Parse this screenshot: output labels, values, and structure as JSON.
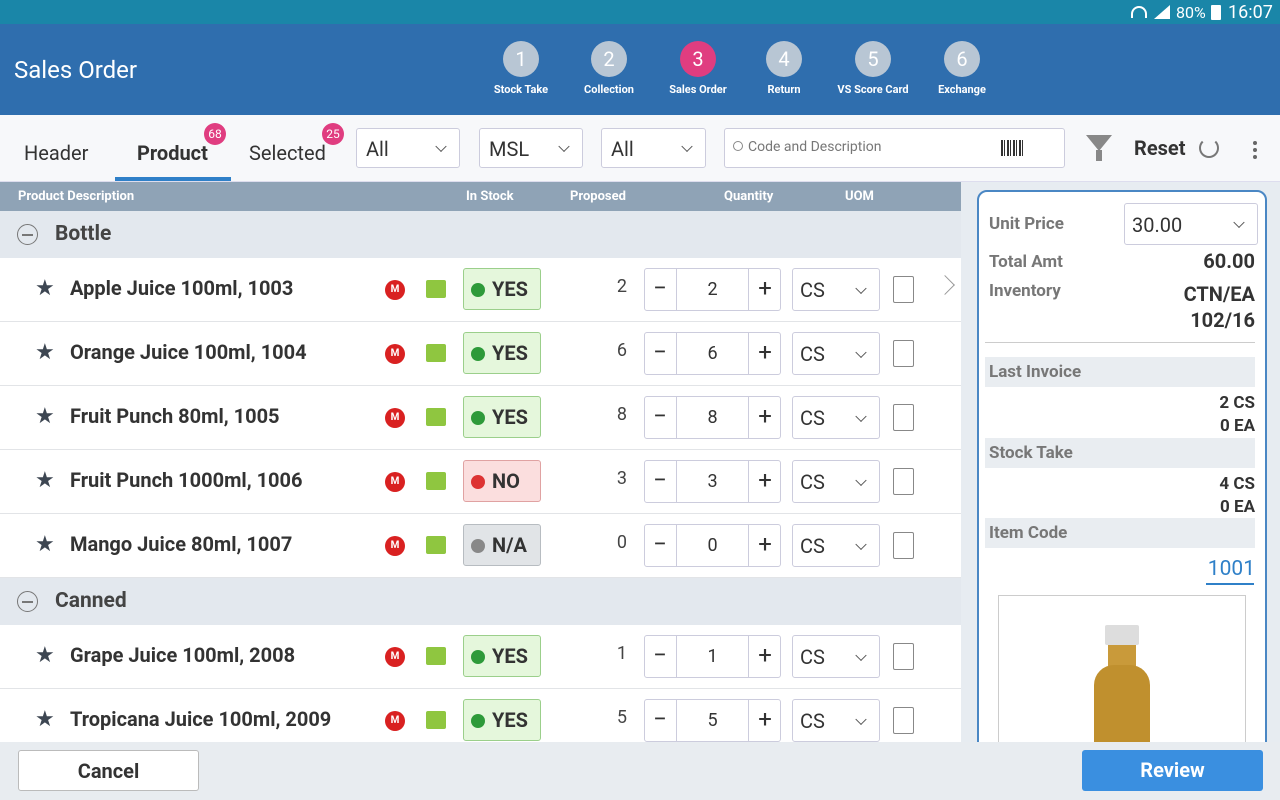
{
  "status_bar": {
    "battery": "80%",
    "time": "16:07"
  },
  "header": {
    "title": "Sales Order",
    "steps": [
      {
        "number": "1",
        "label": "Stock Take",
        "active": false
      },
      {
        "number": "2",
        "label": "Collection",
        "active": false
      },
      {
        "number": "3",
        "label": "Sales Order",
        "active": true
      },
      {
        "number": "4",
        "label": "Return",
        "active": false
      },
      {
        "number": "5",
        "label": "VS Score Card",
        "active": false
      },
      {
        "number": "6",
        "label": "Exchange",
        "active": false
      }
    ]
  },
  "tabs": [
    {
      "label": "Header",
      "active": false
    },
    {
      "label": "Product",
      "badge": "68",
      "active": true
    },
    {
      "label": "Selected",
      "badge": "25",
      "active": false
    }
  ],
  "filters": [
    "All",
    "MSL",
    "All"
  ],
  "search_placeholder": "Code and Description",
  "reset": "Reset",
  "table": {
    "columns": [
      "Product Description",
      "In Stock",
      "Proposed",
      "Quantity",
      "UOM"
    ],
    "groups": [
      {
        "name": "Bottle",
        "rows": [
          {
            "name": "Apple Juice 100ml, 1003",
            "badge": "M",
            "stock": "YES",
            "stock_style": "green",
            "proposed": 2,
            "quantity": 2,
            "uom": "CS"
          },
          {
            "name": "Orange Juice 100ml, 1004",
            "badge": "M",
            "stock": "YES",
            "stock_style": "green",
            "proposed": 6,
            "quantity": 6,
            "uom": "CS"
          },
          {
            "name": "Fruit Punch 80ml, 1005",
            "badge": "M",
            "stock": "YES",
            "stock_style": "green",
            "proposed": 8,
            "quantity": 8,
            "uom": "CS"
          },
          {
            "name": "Fruit Punch 1000ml, 1006",
            "badge": "M",
            "stock": "NO",
            "stock_style": "red",
            "proposed": 3,
            "quantity": 3,
            "uom": "CS"
          },
          {
            "name": "Mango Juice 80ml, 1007",
            "badge": "M",
            "stock": "N/A",
            "stock_style": "gray",
            "proposed": 0,
            "quantity": 0,
            "uom": "CS"
          }
        ]
      },
      {
        "name": "Canned",
        "rows": [
          {
            "name": "Grape Juice 100ml, 2008",
            "badge": "M",
            "stock": "YES",
            "stock_style": "green",
            "proposed": 1,
            "quantity": 1,
            "uom": "CS"
          },
          {
            "name": "Tropicana Juice 100ml, 2009",
            "badge": "M",
            "stock": "YES",
            "stock_style": "green",
            "proposed": 5,
            "quantity": 5,
            "uom": "CS"
          }
        ]
      }
    ]
  },
  "detail": {
    "unit_price_label": "Unit Price",
    "unit_price": "30.00",
    "total_label": "Total Amt",
    "total": "60.00",
    "inventory_label": "Inventory",
    "inventory_unit": "CTN/EA",
    "inventory_value": "102/16",
    "last_invoice_label": "Last Invoice",
    "last_invoice": [
      "2 CS",
      "0 EA"
    ],
    "stock_take_label": "Stock Take",
    "stock_take": [
      "4 CS",
      "0 EA"
    ],
    "item_code_label": "Item Code",
    "item_code": "1001"
  },
  "footer": {
    "cancel": "Cancel",
    "review": "Review"
  }
}
